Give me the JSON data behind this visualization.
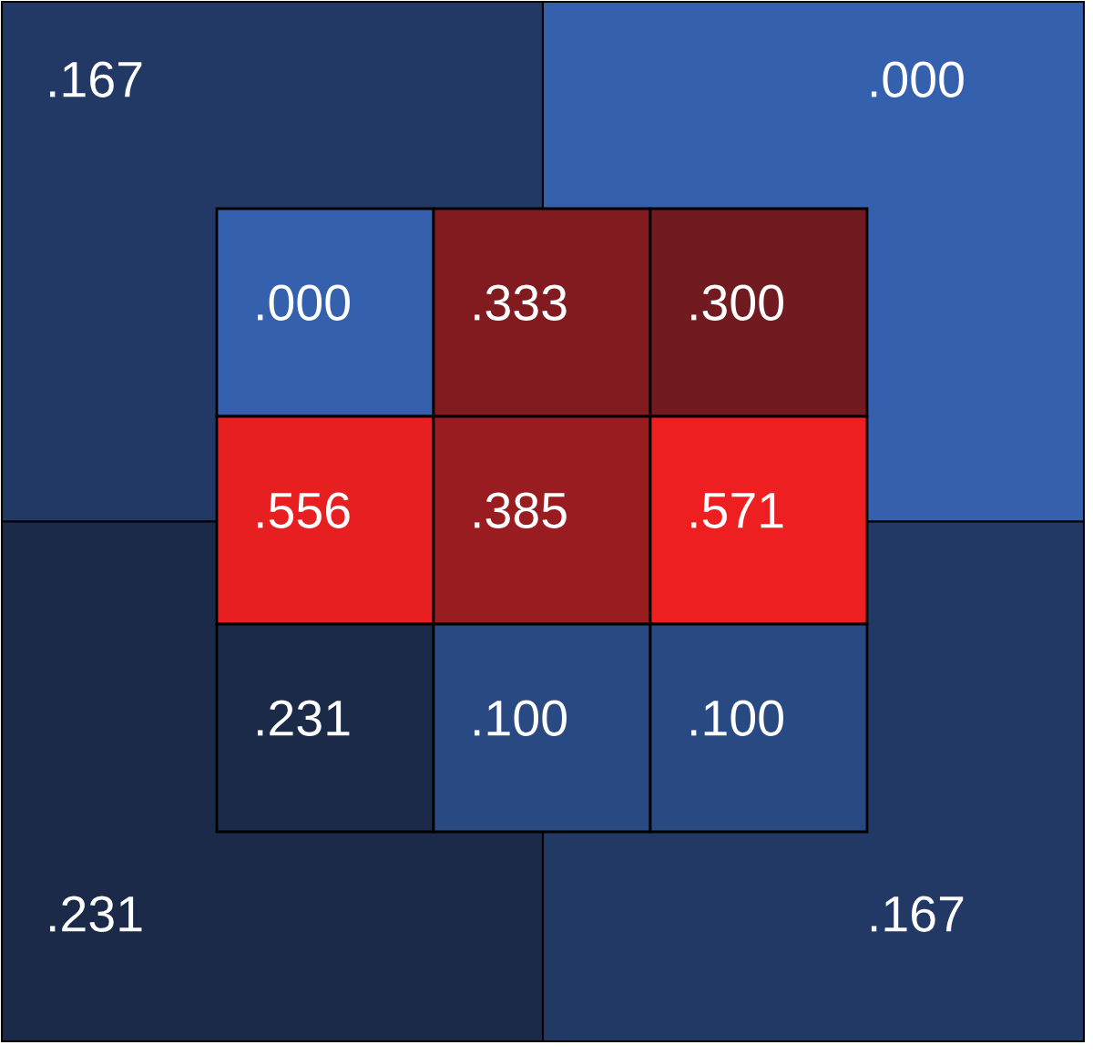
{
  "chart_data": [
    {
      "type": "other",
      "categories": [
        null,
        null,
        null,
        null
      ],
      "values": [
        0.167,
        0.0,
        0.231,
        0.167
      ],
      "value_labels": [
        ".167",
        ".000",
        ".231",
        ".167"
      ],
      "colors": [
        "#3560ae",
        "#1a2a48",
        "#701a20",
        "#ee1f21"
      ]
    },
    {
      "type": "heatmap",
      "categories": [
        null,
        null,
        null
      ],
      "y_categories": [
        null,
        null,
        null
      ],
      "cells": [
        [
          0.0,
          0.333,
          0.3
        ],
        [
          0.556,
          0.385,
          0.571
        ],
        [
          0.231,
          0.1,
          0.1
        ]
      ],
      "cell_labels": [
        [
          ".000",
          ".333",
          ".300"
        ],
        [
          ".556",
          ".385",
          ".571"
        ],
        [
          ".231",
          ".100",
          ".100"
        ]
      ],
      "colors": [
        "#3560ae",
        "#1a2a48",
        "#701a20",
        "#ee1f21"
      ]
    }
  ]
}
